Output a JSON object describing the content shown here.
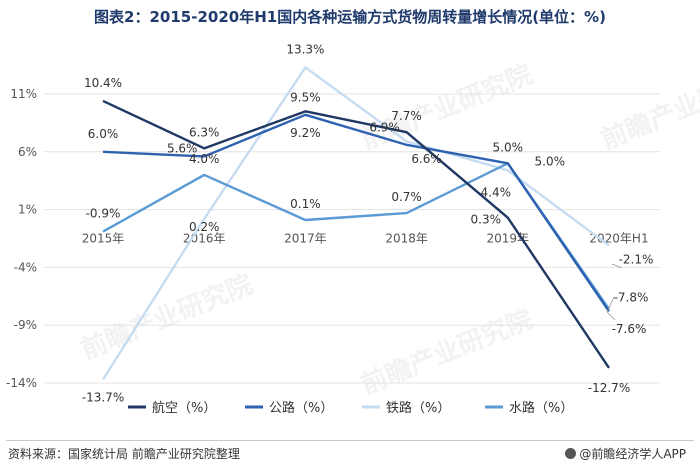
{
  "title": "图表2：2015-2020年H1国内各种运输方式货物周转量增长情况(单位：%)",
  "source": "资料来源：国家统计局 前瞻产业研究院整理",
  "brand": "@前瞻经济学人APP",
  "watermark": "前瞻产业研究院",
  "chart_data": {
    "type": "line",
    "title": "图表2：2015-2020年H1国内各种运输方式货物周转量增长情况(单位：%)",
    "categories": [
      "2015年",
      "2016年",
      "2017年",
      "2018年",
      "2019年",
      "2020年H1"
    ],
    "y_ticks": [
      "11%",
      "6%",
      "1%",
      "-4%",
      "-9%",
      "-14%"
    ],
    "ylim": [
      -14,
      11
    ],
    "grid": true,
    "legend_position": "bottom",
    "series": [
      {
        "name": "航空（%）",
        "color": "#1f3864",
        "values": [
          10.4,
          6.3,
          9.5,
          7.7,
          0.3,
          -12.7
        ],
        "labels": [
          "10.4%",
          "6.3%",
          "9.5%",
          "7.7%",
          "0.3%",
          "-12.7%"
        ]
      },
      {
        "name": "公路（%）",
        "color": "#2e62b0",
        "values": [
          6.0,
          5.6,
          9.2,
          6.6,
          5.0,
          -7.8
        ],
        "labels": [
          "6.0%",
          "5.6%",
          "9.2%",
          "6.6%",
          "5.0%",
          "-7.8%"
        ]
      },
      {
        "name": "铁路（%）",
        "color": "#c5dcf2",
        "values": [
          -13.7,
          0.2,
          13.3,
          6.9,
          4.4,
          -2.1
        ],
        "labels": [
          "-13.7%",
          "0.2%",
          "13.3%",
          "6.9%",
          "4.4%",
          "-2.1%"
        ]
      },
      {
        "name": "水路（%）",
        "color": "#5b9bd5",
        "values": [
          -0.9,
          4.0,
          0.1,
          0.7,
          5.0,
          -7.6
        ],
        "labels": [
          "-0.9%",
          "4.0%",
          "0.1%",
          "0.7%",
          "5.0%",
          "-7.6%"
        ]
      }
    ]
  }
}
